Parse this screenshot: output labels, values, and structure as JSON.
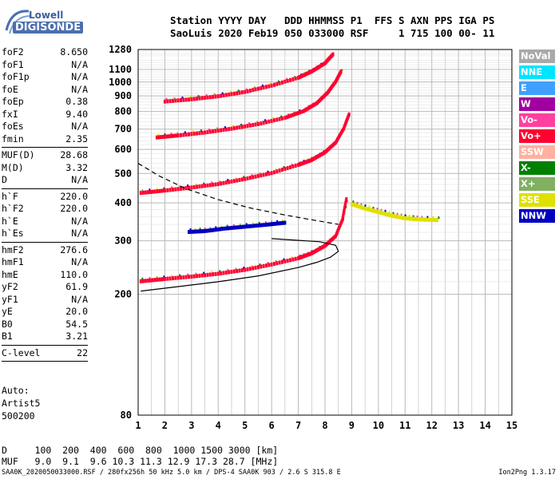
{
  "logo": {
    "line1": "Lowell",
    "line2": "DIGISONDE"
  },
  "header": {
    "line1": "Station YYYY DAY   DDD HHMMSS P1  FFS S AXN PPS IGA PS",
    "line2": "SaoLuis 2020 Feb19 050 033000 RSF     1 715 100 00- 11"
  },
  "params": [
    {
      "k": "foF2",
      "v": "8.650"
    },
    {
      "k": "foF1",
      "v": "N/A"
    },
    {
      "k": "foF1p",
      "v": "N/A"
    },
    {
      "k": "foE",
      "v": "N/A"
    },
    {
      "k": "foEp",
      "v": "0.38"
    },
    {
      "k": "fxI",
      "v": "9.40"
    },
    {
      "k": "foEs",
      "v": "N/A"
    },
    {
      "k": "fmin",
      "v": "2.35"
    },
    {
      "sep": true
    },
    {
      "k": "MUF(D)",
      "v": "28.68"
    },
    {
      "k": "M(D)",
      "v": "3.32"
    },
    {
      "k": "D",
      "v": "N/A"
    },
    {
      "sep": true
    },
    {
      "k": "h`F",
      "v": "220.0"
    },
    {
      "k": "h`F2",
      "v": "220.0"
    },
    {
      "k": "h`E",
      "v": "N/A"
    },
    {
      "k": "h`Es",
      "v": "N/A"
    },
    {
      "sep": true
    },
    {
      "k": "hmF2",
      "v": "276.6"
    },
    {
      "k": "hmF1",
      "v": "N/A"
    },
    {
      "k": "hmE",
      "v": "110.0"
    },
    {
      "k": "yF2",
      "v": "61.9"
    },
    {
      "k": "yF1",
      "v": "N/A"
    },
    {
      "k": "yE",
      "v": "20.0"
    },
    {
      "k": "B0",
      "v": "54.5"
    },
    {
      "k": "B1",
      "v": "3.21"
    },
    {
      "sep": true
    },
    {
      "k": "C-level",
      "v": "22"
    },
    {
      "sep": true
    }
  ],
  "artist": {
    "line1": "Auto:",
    "line2": "Artist5",
    "line3": "500200"
  },
  "dmuf": {
    "line1": "D     100  200  400  600  800  1000 1500 3000 [km]",
    "line2": "MUF   9.0  9.1  9.6 10.3 11.3 12.9 17.3 28.7 [MHz]"
  },
  "footer": "SAA0K_2020050033000.RSF / 280fx256h 50 kHz 5.0 km / DPS-4 SAA0K 903 / 2.6 S 315.8 E",
  "version": "Ion2Png 1.3.17",
  "legend": [
    {
      "label": "NoVal",
      "color": "#a9a9a9"
    },
    {
      "label": "NNE",
      "color": "#00e5ff"
    },
    {
      "label": "E",
      "color": "#3fa0ff"
    },
    {
      "label": "W",
      "color": "#a000a0"
    },
    {
      "label": "Vo-",
      "color": "#ff40a0"
    },
    {
      "label": "Vo+",
      "color": "#ff0030"
    },
    {
      "label": "SSW",
      "color": "#ffb0a0"
    },
    {
      "label": "X-",
      "color": "#008000"
    },
    {
      "label": "X+",
      "color": "#80b060"
    },
    {
      "label": "SSE",
      "color": "#e0e000"
    },
    {
      "label": "NNW",
      "color": "#0000c0"
    }
  ],
  "chart_data": {
    "type": "scatter",
    "title": "",
    "xlabel": "",
    "ylabel": "",
    "xlim": [
      1,
      15
    ],
    "ylim": [
      80,
      1280
    ],
    "y_scale": "log",
    "grid": true,
    "x_ticks": [
      1,
      2,
      3,
      4,
      5,
      6,
      7,
      8,
      9,
      10,
      11,
      12,
      13,
      14,
      15
    ],
    "y_ticks": [
      80,
      200,
      300,
      400,
      500,
      600,
      700,
      800,
      900,
      1000,
      1100,
      1280
    ],
    "traces": [
      {
        "name": "O-trace 1st hop",
        "color": "#ff0030",
        "points": [
          [
            1.1,
            220
          ],
          [
            2,
            224
          ],
          [
            3,
            228
          ],
          [
            4,
            233
          ],
          [
            5,
            240
          ],
          [
            6,
            250
          ],
          [
            7,
            262
          ],
          [
            7.5,
            272
          ],
          [
            8,
            288
          ],
          [
            8.4,
            310
          ],
          [
            8.65,
            350
          ],
          [
            8.8,
            410
          ]
        ]
      },
      {
        "name": "O-trace 2nd hop",
        "color": "#ff0030",
        "points": [
          [
            1.1,
            430
          ],
          [
            2,
            438
          ],
          [
            3,
            448
          ],
          [
            4,
            460
          ],
          [
            5,
            478
          ],
          [
            6,
            500
          ],
          [
            7,
            532
          ],
          [
            7.5,
            552
          ],
          [
            8,
            585
          ],
          [
            8.4,
            630
          ],
          [
            8.7,
            700
          ],
          [
            8.9,
            780
          ]
        ]
      },
      {
        "name": "O-trace 3rd hop",
        "color": "#ff0030",
        "points": [
          [
            1.7,
            655
          ],
          [
            2.5,
            665
          ],
          [
            3.5,
            680
          ],
          [
            4.5,
            700
          ],
          [
            5.5,
            725
          ],
          [
            6.5,
            760
          ],
          [
            7.2,
            800
          ],
          [
            7.7,
            850
          ],
          [
            8.1,
            920
          ],
          [
            8.4,
            1000
          ],
          [
            8.6,
            1080
          ]
        ]
      },
      {
        "name": "O-trace 4th hop",
        "color": "#ff0030",
        "points": [
          [
            2,
            860
          ],
          [
            3,
            875
          ],
          [
            4,
            895
          ],
          [
            5,
            925
          ],
          [
            6,
            970
          ],
          [
            7,
            1030
          ],
          [
            7.5,
            1080
          ],
          [
            8,
            1150
          ],
          [
            8.3,
            1230
          ]
        ]
      },
      {
        "name": "Es/E trace",
        "color": "#0000c0",
        "points": [
          [
            2.9,
            320
          ],
          [
            3.5,
            322
          ],
          [
            4.2,
            328
          ],
          [
            5,
            333
          ],
          [
            5.8,
            338
          ],
          [
            6.5,
            343
          ]
        ]
      },
      {
        "name": "X-trace high",
        "color": "#e0e000",
        "points": [
          [
            9,
            395
          ],
          [
            9.5,
            382
          ],
          [
            10,
            372
          ],
          [
            10.5,
            362
          ],
          [
            11,
            355
          ],
          [
            11.5,
            352
          ],
          [
            12.2,
            350
          ]
        ]
      }
    ],
    "profile_curve": {
      "style": "solid",
      "points": [
        [
          1.1,
          205
        ],
        [
          2.5,
          212
        ],
        [
          4,
          220
        ],
        [
          5.5,
          230
        ],
        [
          7,
          245
        ],
        [
          7.7,
          255
        ],
        [
          8.2,
          265
        ],
        [
          8.5,
          277
        ],
        [
          8.4,
          290
        ],
        [
          7.8,
          298
        ],
        [
          6,
          305
        ]
      ]
    },
    "muf_curve": {
      "style": "dashed",
      "points": [
        [
          1,
          540
        ],
        [
          1.8,
          490
        ],
        [
          2.8,
          445
        ],
        [
          4,
          410
        ],
        [
          5.2,
          385
        ],
        [
          6.5,
          365
        ],
        [
          7.5,
          352
        ],
        [
          8.5,
          340
        ]
      ]
    }
  }
}
